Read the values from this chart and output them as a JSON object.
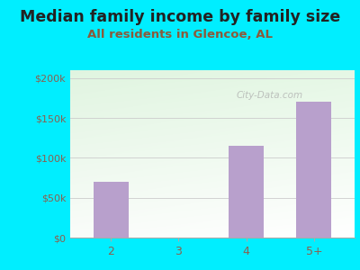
{
  "title": "Median family income by family size",
  "subtitle": "All residents in Glencoe, AL",
  "categories": [
    "2",
    "3",
    "4",
    "5+"
  ],
  "values": [
    70000,
    0,
    115000,
    170000
  ],
  "bar_color": "#b8a0cc",
  "title_fontsize": 12.5,
  "subtitle_fontsize": 9.5,
  "ylabel_ticks": [
    "$0",
    "$50k",
    "$100k",
    "$150k",
    "$200k"
  ],
  "ytick_values": [
    0,
    50000,
    100000,
    150000,
    200000
  ],
  "ylim": [
    0,
    210000
  ],
  "background_outer": "#00eeff",
  "watermark": "City-Data.com",
  "title_color": "#222222",
  "subtitle_color": "#8B5A3A",
  "tick_color": "#8B6050",
  "grid_color": "#cccccc"
}
